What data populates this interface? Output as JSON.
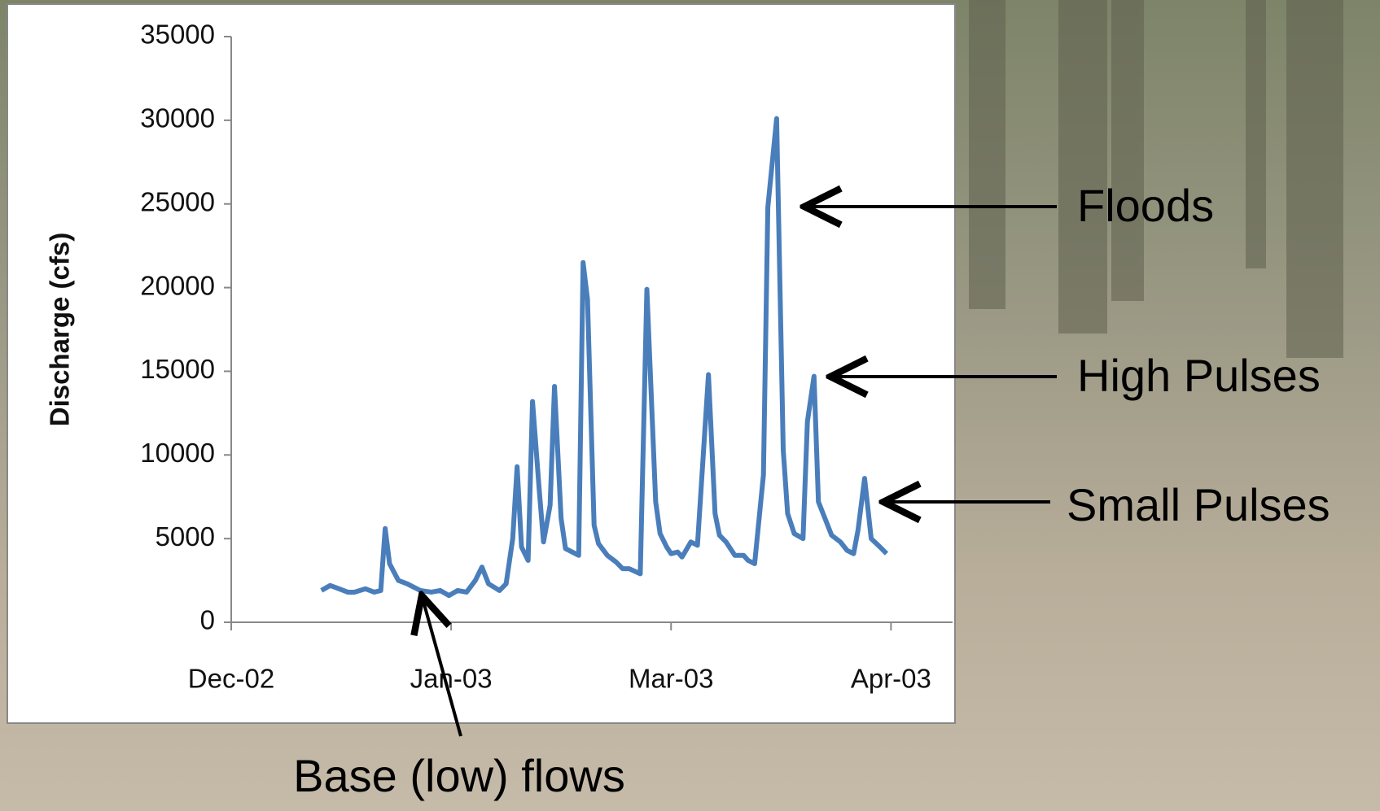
{
  "chart_data": {
    "type": "line",
    "y_label": "Discharge (cfs)",
    "x": [
      0.41,
      0.45,
      0.49,
      0.53,
      0.56,
      0.61,
      0.65,
      0.68,
      0.7,
      0.72,
      0.76,
      0.8,
      0.86,
      0.91,
      0.95,
      0.99,
      1.03,
      1.07,
      1.11,
      1.14,
      1.17,
      1.22,
      1.25,
      1.28,
      1.3,
      1.32,
      1.35,
      1.37,
      1.4,
      1.42,
      1.45,
      1.47,
      1.5,
      1.52,
      1.55,
      1.58,
      1.6,
      1.62,
      1.65,
      1.67,
      1.71,
      1.75,
      1.78,
      1.81,
      1.86,
      1.89,
      1.93,
      1.95,
      1.98,
      2.0,
      2.03,
      2.05,
      2.09,
      2.12,
      2.17,
      2.2,
      2.22,
      2.25,
      2.29,
      2.33,
      2.35,
      2.38,
      2.42,
      2.44,
      2.48,
      2.51,
      2.53,
      2.56,
      2.6,
      2.62,
      2.65,
      2.67,
      2.7,
      2.73,
      2.77,
      2.8,
      2.83,
      2.85,
      2.88,
      2.91,
      2.95,
      2.98
    ],
    "series": [
      {
        "color": "#4a7ebb",
        "values": [
          1900,
          2200,
          2000,
          1800,
          1800,
          2000,
          1800,
          1900,
          5600,
          3500,
          2500,
          2300,
          1900,
          1800,
          1900,
          1600,
          1900,
          1800,
          2500,
          3300,
          2300,
          1900,
          2300,
          5000,
          9300,
          4500,
          3700,
          13200,
          8000,
          4800,
          7000,
          14100,
          6200,
          4400,
          4200,
          4000,
          21500,
          19300,
          5800,
          4700,
          4000,
          3600,
          3200,
          3200,
          2900,
          19900,
          7200,
          5300,
          4500,
          4100,
          4200,
          3900,
          4800,
          4600,
          14800,
          6500,
          5200,
          4800,
          4000,
          4000,
          3700,
          3500,
          8800,
          24800,
          30100,
          10300,
          6500,
          5300,
          5000,
          12000,
          14700,
          7200,
          6200,
          5200,
          4800,
          4300,
          4100,
          5500,
          8600,
          5000,
          4500,
          4100
        ]
      }
    ],
    "xlim": [
      0,
      3.28
    ],
    "xticks": [
      {
        "value": 0,
        "label": "Dec-02"
      },
      {
        "value": 1,
        "label": "Jan-03"
      },
      {
        "value": 2,
        "label": "Mar-03"
      },
      {
        "value": 3,
        "label": "Apr-03"
      }
    ],
    "ylim": [
      0,
      35000
    ],
    "yticks": [
      0,
      5000,
      10000,
      15000,
      20000,
      25000,
      30000,
      35000
    ],
    "grid": false,
    "annotations": [
      "Floods",
      "High Pulses",
      "Small Pulses",
      "Base (low) flows"
    ]
  }
}
